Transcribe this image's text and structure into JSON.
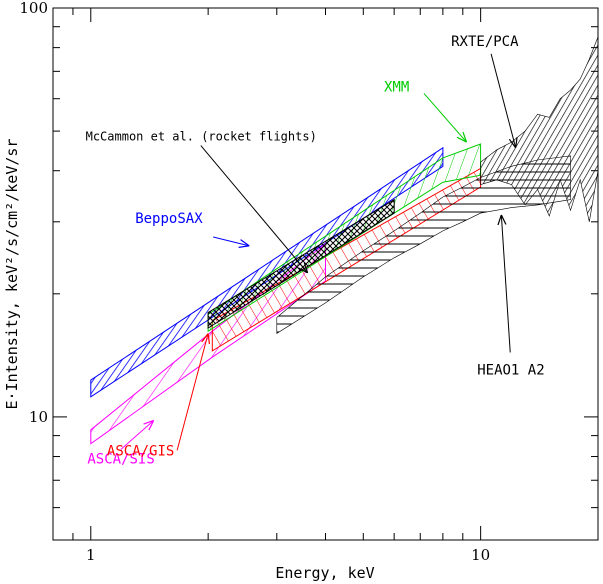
{
  "chart_data": {
    "type": "area",
    "title": "",
    "xlabel": "Energy, keV",
    "ylabel": "E·Intensity, keV²/s/cm²/keV/sr",
    "x_scale": "log",
    "y_scale": "log",
    "xlim": [
      0.8,
      20
    ],
    "ylim": [
      5,
      100
    ],
    "x_tick_labels": [
      {
        "value": 1,
        "label": "1"
      },
      {
        "value": 10,
        "label": "10"
      }
    ],
    "y_tick_labels": [
      {
        "value": 10,
        "label": "10"
      },
      {
        "value": 100,
        "label": "100"
      }
    ],
    "grid": false,
    "series": [
      {
        "name": "BeppoSAX",
        "color": "#0000ff",
        "hatch": "diagonal",
        "x": [
          1,
          8
        ],
        "y_low": [
          11.2,
          41.0
        ],
        "y_high": [
          12.3,
          45.5
        ]
      },
      {
        "name": "ASCA/SIS",
        "color": "#ff00ff",
        "hatch": "diagonal",
        "x": [
          1,
          2.05,
          4
        ],
        "y_low": [
          8.6,
          14.0,
          21.5
        ],
        "y_high": [
          9.3,
          16.2,
          26.5
        ]
      },
      {
        "name": "ASCA/GIS",
        "color": "#ff0000",
        "hatch": "diagonal",
        "x": [
          2.05,
          10
        ],
        "y_low": [
          14.5,
          36.5
        ],
        "y_high": [
          17.2,
          40.5
        ]
      },
      {
        "name": "XMM",
        "color": "#00cc00",
        "hatch": "diagonal",
        "x": [
          2,
          8,
          10
        ],
        "y_low": [
          16.2,
          37.5,
          39.0
        ],
        "y_high": [
          17.8,
          43.0,
          46.5
        ]
      },
      {
        "name": "McCammon et al. (rocket flights)",
        "color": "#000000",
        "hatch": "cross",
        "x": [
          2,
          6
        ],
        "y_low": [
          16.5,
          31.5
        ],
        "y_high": [
          18.0,
          34.0
        ]
      },
      {
        "name": "HEAO1 A2",
        "color": "#000000",
        "hatch": "horizontal",
        "x": [
          3,
          4,
          5,
          6,
          7,
          8,
          9,
          10,
          12,
          14,
          17
        ],
        "y_low": [
          16.0,
          19.0,
          22.0,
          24.5,
          26.5,
          28.5,
          30.0,
          31.5,
          32.5,
          33.0,
          34.0
        ],
        "y_high": [
          17.5,
          22.0,
          25.5,
          28.5,
          31.5,
          34.5,
          36.5,
          38.5,
          41.0,
          42.5,
          43.5
        ]
      },
      {
        "name": "RXTE/PCA",
        "color": "#000000",
        "hatch": "vertical",
        "x": [
          10,
          11,
          12,
          13,
          14,
          15,
          16,
          17,
          18,
          19,
          20
        ],
        "y_low": [
          37,
          38,
          37,
          33,
          36,
          31,
          38,
          32,
          38,
          30,
          40
        ],
        "y_high": [
          42,
          45,
          47,
          50,
          55,
          54,
          60,
          63,
          67,
          75,
          85
        ]
      }
    ],
    "annotations": [
      {
        "text": "BeppoSAX",
        "color": "#0000ff",
        "label_x": 1.3,
        "label_y": 29.8,
        "arrow_to": [
          2.55,
          26.2
        ]
      },
      {
        "text": "ASCA/SIS",
        "color": "#ff00ff",
        "label_x": 0.98,
        "label_y": 7.7,
        "arrow_to": [
          1.45,
          9.8
        ]
      },
      {
        "text": "ASCA/GIS",
        "color": "#ff0000",
        "label_x": 1.1,
        "label_y": 8.05,
        "arrow_to": [
          2.0,
          16.0
        ]
      },
      {
        "text": "XMM",
        "color": "#00cc00",
        "label_x": 5.65,
        "label_y": 62.5,
        "arrow_to": [
          9.2,
          47.0
        ]
      },
      {
        "text": "McCammon et al. (rocket flights)",
        "color": "#000000",
        "label_x": 0.97,
        "label_y": 47.4,
        "arrow_to": [
          3.6,
          22.5
        ]
      },
      {
        "text": "RXTE/PCA",
        "color": "#000000",
        "label_x": 8.4,
        "label_y": 80.8,
        "arrow_to": [
          12.3,
          45.5
        ]
      },
      {
        "text": "HEAO1 A2",
        "color": "#000000",
        "label_x": 9.8,
        "label_y": 12.7,
        "arrow_to": [
          11.3,
          31.2
        ]
      }
    ]
  }
}
